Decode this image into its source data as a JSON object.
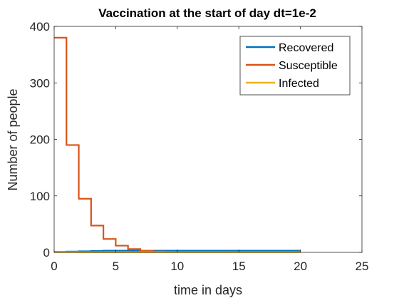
{
  "chart_data": {
    "type": "line",
    "title": "Vaccination at the start of day dt=1e-2",
    "xlabel": "time in days",
    "ylabel": "Number of people",
    "xlim": [
      0,
      25
    ],
    "ylim": [
      0,
      400
    ],
    "xticks": [
      0,
      5,
      10,
      15,
      20,
      25
    ],
    "yticks": [
      0,
      100,
      200,
      300,
      400
    ],
    "grid": false,
    "legend_position": "top-right",
    "series": [
      {
        "name": "Recovered",
        "color": "#0072BD",
        "step": true,
        "x": [
          0,
          1,
          2,
          3,
          4,
          5,
          6,
          7,
          20
        ],
        "y": [
          1,
          1.5,
          2,
          2.5,
          3,
          3,
          3,
          3,
          3
        ]
      },
      {
        "name": "Susceptible",
        "color": "#D95319",
        "step": true,
        "x": [
          0,
          1,
          2,
          3,
          4,
          5,
          6,
          7,
          8,
          9,
          20
        ],
        "y": [
          380,
          190,
          95,
          47.5,
          23.75,
          11.9,
          5.9,
          3,
          1.5,
          0.7,
          0.7
        ]
      },
      {
        "name": "Infected",
        "color": "#EDB120",
        "step": true,
        "x": [
          0,
          2,
          20
        ],
        "y": [
          0.5,
          0.3,
          0.2
        ]
      }
    ]
  }
}
